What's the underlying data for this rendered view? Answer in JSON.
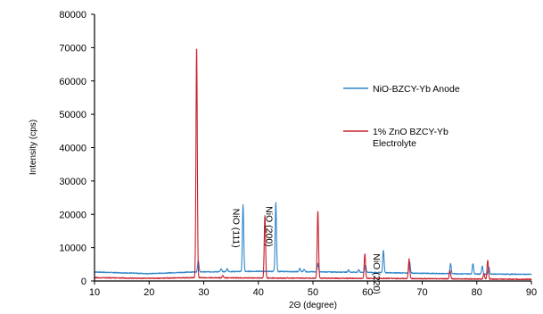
{
  "chart_data": {
    "type": "line",
    "xlabel": "2Θ (degree)",
    "ylabel": "Intensity (cps)",
    "xlim": [
      10,
      90
    ],
    "ylim": [
      0,
      80000
    ],
    "xticks": [
      10,
      20,
      30,
      40,
      50,
      60,
      70,
      80,
      90
    ],
    "yticks": [
      0,
      10000,
      20000,
      30000,
      40000,
      50000,
      60000,
      70000,
      80000
    ],
    "grid": false,
    "legend_position": "right",
    "series": [
      {
        "name": "NiO-BZCY-Yb Anode",
        "color": "#2e86c8",
        "baseline": [
          [
            10,
            2700
          ],
          [
            20,
            2200
          ],
          [
            28,
            2700
          ],
          [
            40,
            2900
          ],
          [
            60,
            2600
          ],
          [
            70,
            2300
          ],
          [
            80,
            2100
          ],
          [
            90,
            2000
          ]
        ],
        "peaks": [
          {
            "x": 29.0,
            "y": 6200
          },
          {
            "x": 33.2,
            "y": 3600
          },
          {
            "x": 34.3,
            "y": 3700
          },
          {
            "x": 37.2,
            "y": 22800
          },
          {
            "x": 43.2,
            "y": 23500
          },
          {
            "x": 47.6,
            "y": 3800
          },
          {
            "x": 48.4,
            "y": 3500
          },
          {
            "x": 50.9,
            "y": 5200
          },
          {
            "x": 56.5,
            "y": 3300
          },
          {
            "x": 58.4,
            "y": 3400
          },
          {
            "x": 59.6,
            "y": 4800
          },
          {
            "x": 62.9,
            "y": 9300
          },
          {
            "x": 67.7,
            "y": 5800
          },
          {
            "x": 75.2,
            "y": 5200
          },
          {
            "x": 79.3,
            "y": 5300
          },
          {
            "x": 81.0,
            "y": 4500
          },
          {
            "x": 82.2,
            "y": 4200
          }
        ]
      },
      {
        "name": "1% ZnO BZCY-Yb Electrolyte",
        "color": "#c8202c",
        "baseline": [
          [
            10,
            1000
          ],
          [
            20,
            800
          ],
          [
            28,
            1000
          ],
          [
            40,
            900
          ],
          [
            60,
            800
          ],
          [
            70,
            700
          ],
          [
            80,
            600
          ],
          [
            90,
            500
          ]
        ],
        "peaks": [
          {
            "x": 28.7,
            "y": 70500
          },
          {
            "x": 33.5,
            "y": 1600
          },
          {
            "x": 41.2,
            "y": 19700
          },
          {
            "x": 50.9,
            "y": 21000
          },
          {
            "x": 59.5,
            "y": 8100
          },
          {
            "x": 67.6,
            "y": 6600
          },
          {
            "x": 75.1,
            "y": 3200
          },
          {
            "x": 81.3,
            "y": 2300
          },
          {
            "x": 82.0,
            "y": 6300
          }
        ]
      }
    ],
    "annotations": [
      {
        "text": "NiO (111)",
        "x": 37.2,
        "y": 22800
      },
      {
        "text": "NiO (200)",
        "x": 43.2,
        "y": 23500
      },
      {
        "text": "NiO (220)",
        "x": 62.9,
        "y": 9300
      }
    ]
  }
}
